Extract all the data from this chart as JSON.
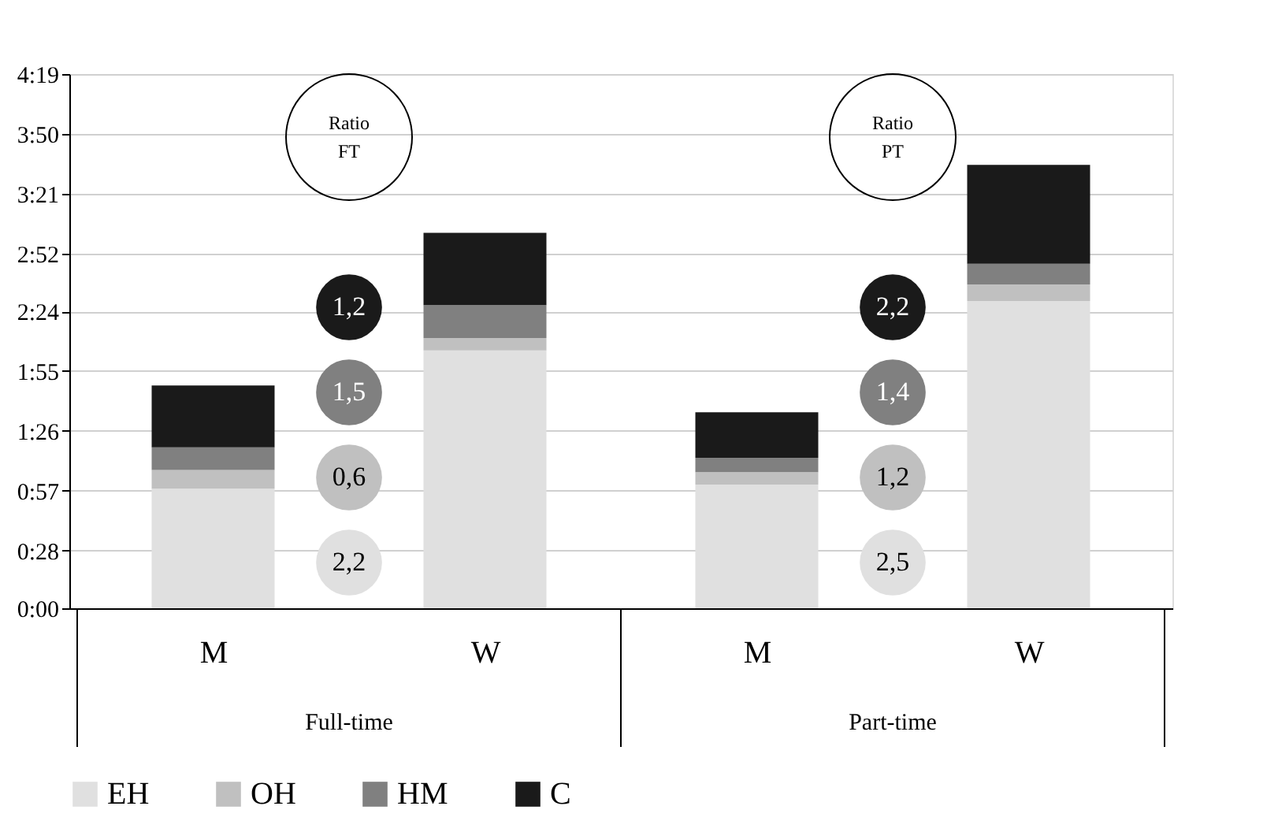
{
  "chart_data": {
    "type": "bar",
    "stacked": true,
    "categories": [
      "M",
      "W",
      "M",
      "W"
    ],
    "series": [
      {
        "name": "EH",
        "color": "#e0e0e0",
        "values": [
          58,
          125,
          60,
          149
        ]
      },
      {
        "name": "OH",
        "color": "#c0c0c0",
        "values": [
          9,
          6,
          6,
          8
        ]
      },
      {
        "name": "HM",
        "color": "#808080",
        "values": [
          11,
          16,
          7,
          10
        ]
      },
      {
        "name": "C",
        "color": "#1a1a1a",
        "values": [
          30,
          35,
          22,
          48
        ]
      }
    ],
    "ylim": [
      0,
      259
    ],
    "yticks": [
      {
        "value": 0,
        "label": "0:00"
      },
      {
        "value": 28,
        "label": "0:28"
      },
      {
        "value": 57,
        "label": "0:57"
      },
      {
        "value": 86,
        "label": "1:26"
      },
      {
        "value": 115,
        "label": "1:55"
      },
      {
        "value": 144,
        "label": "2:24"
      },
      {
        "value": 172,
        "label": "2:52"
      },
      {
        "value": 201,
        "label": "3:21"
      },
      {
        "value": 230,
        "label": "3:50"
      },
      {
        "value": 259,
        "label": "4:19"
      }
    ],
    "grid": "y",
    "legend": "bottom",
    "annotations": [
      "Full-time",
      "Part-time",
      "Ratio FT",
      "Ratio PT",
      "2,2",
      "0,6",
      "1,5",
      "1,2",
      "2,5",
      "1,2",
      "1,4",
      "2,2"
    ]
  }
}
